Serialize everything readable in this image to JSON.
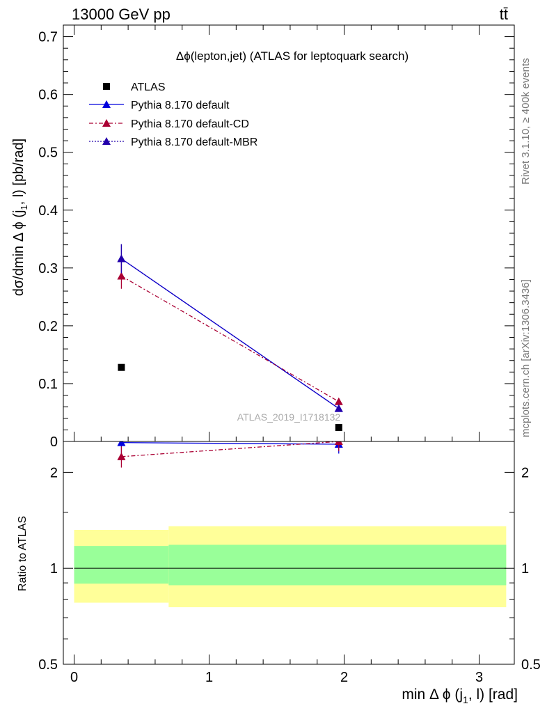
{
  "header": {
    "energy": "13000 GeV pp",
    "process": "tt̄"
  },
  "side_labels": {
    "rivet": "Rivet 3.1.10, ≥ 400k events",
    "mcplots": "mcplots.cern.ch [arXiv:1306.3436]"
  },
  "watermark": "ATLAS_2019_I1718132",
  "colors": {
    "atlas": "#000000",
    "default": "#0000dd",
    "default_cd": "#aa0033",
    "default_mbr": "#2200aa",
    "band_outer": "#ffff99",
    "band_inner": "#99ff99"
  },
  "chart_data": [
    {
      "type": "scatter",
      "title": "Δϕ(lepton,jet) (ATLAS for leptoquark search)",
      "xlabel": "min Δ ϕ (j1, l) [rad]",
      "ylabel": "dσ/dmin Δ ϕ (j1, l) [pb/rad]",
      "xlim": [
        -0.08,
        3.26
      ],
      "ylim": [
        0,
        0.72
      ],
      "yticks": [
        0,
        0.1,
        0.2,
        0.3,
        0.4,
        0.5,
        0.6,
        0.7
      ],
      "ytick_labels": [
        "0",
        "0.1",
        "0.2",
        "0.3",
        "0.4",
        "0.5",
        "0.6",
        "0.7"
      ],
      "legend_position": "top-left",
      "series": [
        {
          "name": "ATLAS",
          "style": "square",
          "x": [
            0.35,
            1.96
          ],
          "y": [
            0.128,
            0.024
          ]
        },
        {
          "name": "Pythia 8.170 default",
          "style": "solid",
          "x": [
            0.35,
            1.96
          ],
          "y": [
            0.316,
            0.057
          ],
          "yerr": [
            0.025,
            0.004
          ]
        },
        {
          "name": "Pythia 8.170 default-CD",
          "style": "dashdot",
          "x": [
            0.35,
            1.96
          ],
          "y": [
            0.286,
            0.069
          ],
          "yerr": [
            0.022,
            0.004
          ]
        },
        {
          "name": "Pythia 8.170 default-MBR",
          "style": "dotted",
          "x": [
            0.35,
            1.96
          ],
          "y": [
            0.316,
            0.057
          ],
          "yerr": [
            0.025,
            0.004
          ]
        }
      ]
    },
    {
      "type": "line",
      "ylabel": "Ratio to ATLAS",
      "xlabel": "min Δ ϕ (j1, l) [rad]",
      "xlim": [
        -0.08,
        3.26
      ],
      "ylim": [
        0.5,
        2.5
      ],
      "scale": "log",
      "yticks": [
        0.5,
        1,
        2
      ],
      "ytick_labels": [
        "0.5",
        "1",
        "2"
      ],
      "xticks": [
        0,
        1,
        2,
        3
      ],
      "xtick_labels": [
        "0",
        "1",
        "2",
        "3"
      ],
      "bands": [
        {
          "x0": 0.0,
          "x1": 0.7,
          "inner": [
            0.895,
            1.175
          ],
          "outer": [
            0.78,
            1.32
          ]
        },
        {
          "x0": 0.7,
          "x1": 3.2,
          "inner": [
            0.885,
            1.185
          ],
          "outer": [
            0.755,
            1.355
          ]
        }
      ],
      "series": [
        {
          "name": "Pythia 8.170 default",
          "x": [
            0.35,
            1.96
          ],
          "y": [
            2.48,
            2.45
          ],
          "yerr": [
            0.2,
            0.16
          ]
        },
        {
          "name": "Pythia 8.170 default-CD",
          "x": [
            0.35,
            1.96
          ],
          "y": [
            2.24,
            2.5
          ],
          "yerr": [
            0.17,
            0.17
          ]
        }
      ]
    }
  ]
}
